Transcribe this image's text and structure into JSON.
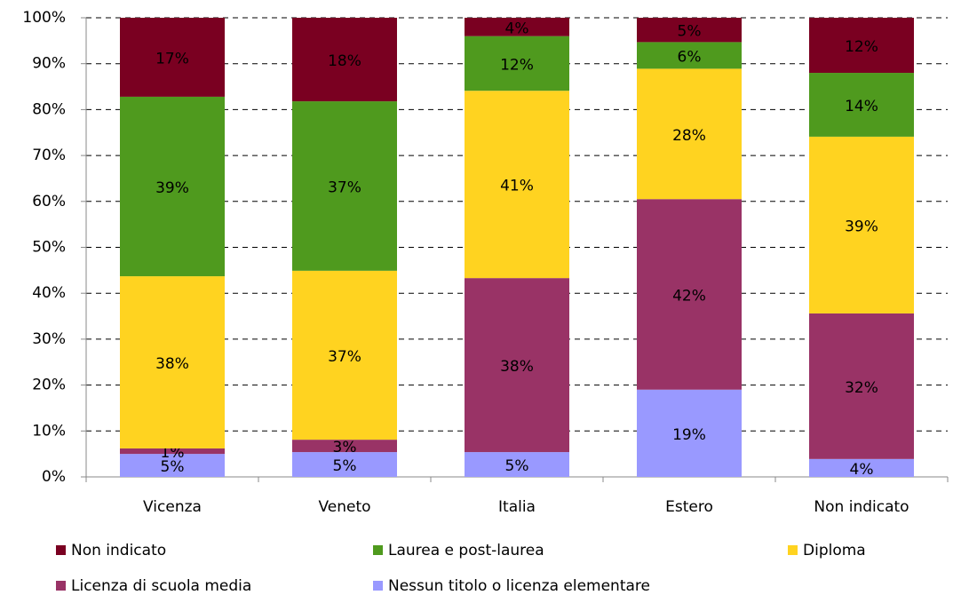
{
  "chart_data": {
    "type": "stacked_bar_percent",
    "categories": [
      "Vicenza",
      "Veneto",
      "Italia",
      "Estero",
      "Non indicato"
    ],
    "ylim": [
      0,
      100
    ],
    "yticks": [
      {
        "value": 0,
        "label": "0%"
      },
      {
        "value": 10,
        "label": "10%"
      },
      {
        "value": 20,
        "label": "20%"
      },
      {
        "value": 30,
        "label": "30%"
      },
      {
        "value": 40,
        "label": "40%"
      },
      {
        "value": 50,
        "label": "50%"
      },
      {
        "value": 60,
        "label": "60%"
      },
      {
        "value": 70,
        "label": "70%"
      },
      {
        "value": 80,
        "label": "80%"
      },
      {
        "value": 90,
        "label": "90%"
      },
      {
        "value": 100,
        "label": "100%"
      }
    ],
    "grid": true,
    "series": [
      {
        "name": "Non indicato",
        "color": "#7a0021",
        "values": [
          17.2,
          18.2,
          4.0,
          5.3,
          12.0
        ],
        "value_labels": [
          "17%",
          "18%",
          "4%",
          "5%",
          "12%"
        ]
      },
      {
        "name": "Laurea e post-laurea",
        "color": "#4f9a1e",
        "values": [
          39.1,
          36.9,
          11.9,
          5.8,
          13.9
        ],
        "value_labels": [
          "39%",
          "37%",
          "12%",
          "6%",
          "14%"
        ]
      },
      {
        "name": "Diploma",
        "color": "#ffd320",
        "values": [
          37.5,
          36.8,
          40.8,
          28.4,
          38.5
        ],
        "value_labels": [
          "38%",
          "37%",
          "41%",
          "28%",
          "39%"
        ]
      },
      {
        "name": "Licenza di scuola media",
        "color": "#993366",
        "values": [
          1.2,
          2.7,
          37.9,
          41.5,
          31.7
        ],
        "value_labels": [
          "1%",
          "3%",
          "38%",
          "42%",
          "32%"
        ]
      },
      {
        "name": "Nessun titolo o licenza elementare",
        "color": "#9999ff",
        "values": [
          5.0,
          5.4,
          5.4,
          19.0,
          3.9
        ],
        "value_labels": [
          "5%",
          "5%",
          "5%",
          "19%",
          "4%"
        ]
      }
    ]
  }
}
